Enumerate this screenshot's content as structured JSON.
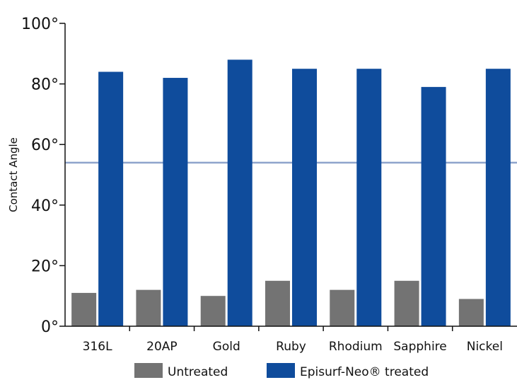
{
  "chart_data": {
    "type": "bar",
    "categories": [
      "316L",
      "20AP",
      "Gold",
      "Ruby",
      "Rhodium",
      "Sapphire",
      "Nickel"
    ],
    "series": [
      {
        "name": "Untreated",
        "color": "#737373",
        "values": [
          11,
          12,
          10,
          15,
          12,
          15,
          9
        ]
      },
      {
        "name": "Episurf-Neo® treated",
        "color": "#0f4c9c",
        "values": [
          84,
          82,
          88,
          85,
          85,
          79,
          85
        ]
      }
    ],
    "ylabel": "Contact Angle",
    "xlabel": "",
    "ylim": [
      0,
      100
    ],
    "yticks": [
      0,
      20,
      40,
      60,
      80,
      100
    ],
    "ytick_suffix": "°",
    "reference_line": {
      "value": 54,
      "color": "#8ea4cc"
    },
    "grid": false,
    "legend_position": "bottom"
  }
}
